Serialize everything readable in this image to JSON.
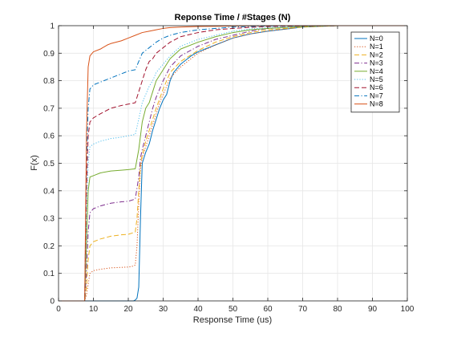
{
  "chart_data": {
    "type": "line",
    "title": "Reponse Time / #Stages (N)",
    "xlabel": "Response Time (us)",
    "ylabel": "F(x)",
    "xlim": [
      0,
      100
    ],
    "ylim": [
      0,
      1
    ],
    "xticks": [
      0,
      10,
      20,
      30,
      40,
      50,
      60,
      70,
      80,
      90,
      100
    ],
    "yticks": [
      0,
      0.1,
      0.2,
      0.3,
      0.4,
      0.5,
      0.6,
      0.7,
      0.8,
      0.9,
      1
    ],
    "grid": true,
    "legend_position": "top-right",
    "series": [
      {
        "name": "N=0",
        "color": "#0072BD",
        "dash": "solid",
        "x": [
          0,
          7.5,
          20,
          21.5,
          22,
          22.5,
          23,
          23.5,
          24,
          25,
          26,
          27,
          28,
          29,
          30,
          31,
          32,
          33,
          35,
          38,
          40,
          45,
          50,
          55,
          60,
          70,
          80,
          100
        ],
        "y": [
          0,
          0,
          0,
          0,
          0.003,
          0.01,
          0.05,
          0.3,
          0.5,
          0.54,
          0.57,
          0.62,
          0.66,
          0.7,
          0.73,
          0.75,
          0.8,
          0.83,
          0.86,
          0.89,
          0.905,
          0.93,
          0.955,
          0.97,
          0.98,
          0.995,
          1,
          1
        ]
      },
      {
        "name": "N=1",
        "color": "#D95319",
        "dash": "dotted",
        "x": [
          0,
          7.5,
          8,
          8.5,
          9,
          10,
          12,
          15,
          20,
          21,
          22,
          22.5,
          23,
          23.5,
          24,
          25,
          26,
          27,
          28,
          29,
          30,
          32,
          35,
          40,
          45,
          50,
          55,
          60,
          70,
          80,
          100
        ],
        "y": [
          0,
          0,
          0.02,
          0.06,
          0.1,
          0.11,
          0.115,
          0.12,
          0.123,
          0.125,
          0.13,
          0.2,
          0.35,
          0.48,
          0.52,
          0.56,
          0.6,
          0.64,
          0.68,
          0.72,
          0.75,
          0.81,
          0.85,
          0.9,
          0.93,
          0.955,
          0.97,
          0.98,
          0.995,
          1,
          1
        ]
      },
      {
        "name": "N=2",
        "color": "#EDB120",
        "dash": "dashed",
        "x": [
          0,
          7.5,
          8,
          8.5,
          9,
          10,
          12,
          15,
          18,
          20,
          22,
          22.5,
          23,
          23.5,
          24,
          25,
          26,
          27,
          28,
          30,
          32,
          35,
          40,
          45,
          50,
          55,
          60,
          70,
          80,
          100
        ],
        "y": [
          0,
          0,
          0.05,
          0.15,
          0.2,
          0.215,
          0.225,
          0.235,
          0.24,
          0.242,
          0.25,
          0.3,
          0.4,
          0.5,
          0.53,
          0.58,
          0.62,
          0.66,
          0.7,
          0.77,
          0.83,
          0.87,
          0.91,
          0.94,
          0.96,
          0.975,
          0.985,
          0.995,
          1,
          1
        ]
      },
      {
        "name": "N=3",
        "color": "#7E2F8E",
        "dash": "dashdot",
        "x": [
          0,
          7.5,
          8,
          8.5,
          9,
          10,
          12,
          15,
          18,
          20,
          22,
          23,
          23.5,
          24,
          25,
          26,
          27,
          28,
          30,
          32,
          35,
          40,
          45,
          50,
          55,
          60,
          70,
          80,
          100
        ],
        "y": [
          0,
          0,
          0.1,
          0.25,
          0.32,
          0.335,
          0.345,
          0.355,
          0.36,
          0.362,
          0.37,
          0.45,
          0.52,
          0.55,
          0.6,
          0.65,
          0.7,
          0.74,
          0.8,
          0.85,
          0.89,
          0.925,
          0.95,
          0.965,
          0.98,
          0.99,
          0.997,
          1,
          1
        ]
      },
      {
        "name": "N=4",
        "color": "#77AC30",
        "dash": "solid",
        "x": [
          0,
          7.5,
          8,
          8.5,
          9,
          10,
          12,
          15,
          18,
          20,
          22,
          23,
          24,
          25,
          26,
          27,
          28,
          30,
          32,
          35,
          40,
          45,
          50,
          55,
          60,
          70,
          80,
          100
        ],
        "y": [
          0,
          0,
          0.2,
          0.4,
          0.45,
          0.455,
          0.465,
          0.472,
          0.475,
          0.477,
          0.48,
          0.55,
          0.65,
          0.7,
          0.72,
          0.76,
          0.8,
          0.84,
          0.88,
          0.915,
          0.94,
          0.96,
          0.975,
          0.985,
          0.99,
          0.997,
          1,
          1
        ]
      },
      {
        "name": "N=5",
        "color": "#4DBEEE",
        "dash": "dotted",
        "x": [
          0,
          7.5,
          8,
          8.5,
          9,
          10,
          12,
          15,
          18,
          20,
          22,
          23,
          24,
          25,
          26,
          27,
          28,
          30,
          32,
          35,
          40,
          45,
          50,
          55,
          60,
          70,
          80,
          100
        ],
        "y": [
          0,
          0,
          0.3,
          0.5,
          0.56,
          0.57,
          0.58,
          0.59,
          0.595,
          0.6,
          0.605,
          0.66,
          0.72,
          0.75,
          0.78,
          0.8,
          0.83,
          0.86,
          0.89,
          0.925,
          0.95,
          0.965,
          0.98,
          0.988,
          0.993,
          0.998,
          1,
          1
        ]
      },
      {
        "name": "N=6",
        "color": "#A2142F",
        "dash": "dashed",
        "x": [
          0,
          7.5,
          8,
          8.5,
          9,
          10,
          12,
          15,
          18,
          20,
          22,
          23,
          24,
          25,
          26,
          27,
          28,
          30,
          32,
          35,
          40,
          45,
          50,
          55,
          60,
          70,
          80,
          100
        ],
        "y": [
          0,
          0,
          0.4,
          0.6,
          0.65,
          0.665,
          0.68,
          0.7,
          0.71,
          0.715,
          0.72,
          0.76,
          0.8,
          0.84,
          0.87,
          0.88,
          0.9,
          0.92,
          0.94,
          0.96,
          0.975,
          0.985,
          0.99,
          0.994,
          0.997,
          0.999,
          1,
          1
        ]
      },
      {
        "name": "N=7",
        "color": "#0072BD",
        "dash": "dashdot",
        "x": [
          0,
          7.5,
          8,
          8.5,
          9,
          10,
          12,
          15,
          18,
          20,
          22,
          23,
          24,
          25,
          26,
          27,
          28,
          30,
          32,
          35,
          40,
          45,
          50,
          55,
          60,
          70,
          80,
          100
        ],
        "y": [
          0,
          0,
          0.5,
          0.7,
          0.77,
          0.785,
          0.795,
          0.81,
          0.825,
          0.835,
          0.84,
          0.87,
          0.9,
          0.91,
          0.92,
          0.93,
          0.94,
          0.955,
          0.965,
          0.975,
          0.985,
          0.99,
          0.995,
          0.997,
          0.999,
          1,
          1,
          1
        ]
      },
      {
        "name": "N=8",
        "color": "#D95319",
        "dash": "solid",
        "x": [
          0,
          7.5,
          8,
          8.5,
          9,
          10,
          12,
          14,
          15,
          18,
          20,
          22,
          24,
          26,
          28,
          30,
          32,
          35,
          40,
          45,
          50,
          60,
          70,
          80,
          100
        ],
        "y": [
          0,
          0,
          0.6,
          0.85,
          0.89,
          0.905,
          0.915,
          0.93,
          0.935,
          0.945,
          0.955,
          0.965,
          0.975,
          0.98,
          0.985,
          0.99,
          0.993,
          0.995,
          0.997,
          0.998,
          0.999,
          1,
          1,
          1,
          1
        ]
      }
    ]
  }
}
